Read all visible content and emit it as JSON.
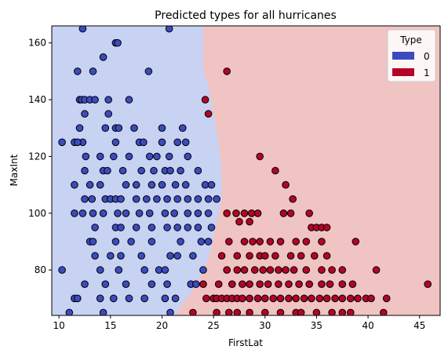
{
  "chart_data": {
    "type": "scatter",
    "title": "Predicted types for all hurricanes",
    "xlabel": "FirstLat",
    "ylabel": "MaxInt",
    "xlim": [
      9.3,
      47.0
    ],
    "ylim": [
      64.0,
      166.0
    ],
    "xticks": [
      10,
      15,
      20,
      25,
      30,
      35,
      40,
      45
    ],
    "yticks": [
      80,
      100,
      120,
      140,
      160
    ],
    "grid": false,
    "legend": {
      "title": "Type",
      "placement": "top-right",
      "entries": [
        "0",
        "1"
      ]
    },
    "colors": {
      "type0": "#3b4cc0",
      "type1": "#b40426",
      "region0": "#c8d2f2",
      "region1": "#f0c4c2"
    },
    "decision_boundary": [
      [
        24.0,
        166
      ],
      [
        24.0,
        150
      ],
      [
        24.5,
        145
      ],
      [
        25.0,
        135
      ],
      [
        25.5,
        125
      ],
      [
        25.8,
        115
      ],
      [
        25.8,
        105
      ],
      [
        25.5,
        100
      ],
      [
        25.2,
        95
      ],
      [
        24.8,
        88
      ],
      [
        24.3,
        82
      ],
      [
        23.8,
        78
      ],
      [
        22.8,
        72
      ],
      [
        21.8,
        67
      ],
      [
        21.3,
        64
      ]
    ],
    "series": [
      {
        "label": "0",
        "points": [
          [
            12.3,
            165
          ],
          [
            20.7,
            165
          ],
          [
            15.5,
            160
          ],
          [
            15.7,
            160
          ],
          [
            14.3,
            155
          ],
          [
            11.8,
            150
          ],
          [
            13.3,
            150
          ],
          [
            18.7,
            150
          ],
          [
            12.0,
            140
          ],
          [
            12.2,
            140
          ],
          [
            12.5,
            140
          ],
          [
            13.0,
            140
          ],
          [
            13.5,
            140
          ],
          [
            14.8,
            140
          ],
          [
            16.8,
            140
          ],
          [
            12.5,
            135
          ],
          [
            14.8,
            135
          ],
          [
            12.0,
            130
          ],
          [
            14.5,
            130
          ],
          [
            15.5,
            130
          ],
          [
            15.8,
            130
          ],
          [
            17.3,
            130
          ],
          [
            20.0,
            130
          ],
          [
            22.0,
            130
          ],
          [
            11.5,
            125
          ],
          [
            12.3,
            125
          ],
          [
            15.5,
            125
          ],
          [
            17.8,
            125
          ],
          [
            18.2,
            125
          ],
          [
            20.0,
            125
          ],
          [
            21.5,
            125
          ],
          [
            10.3,
            125
          ],
          [
            11.8,
            125
          ],
          [
            22.3,
            125
          ],
          [
            18.8,
            120
          ],
          [
            12.6,
            120
          ],
          [
            14.0,
            120
          ],
          [
            15.3,
            120
          ],
          [
            16.8,
            120
          ],
          [
            19.5,
            120
          ],
          [
            20.7,
            120
          ],
          [
            22.5,
            120
          ],
          [
            14.3,
            115
          ],
          [
            12.5,
            115
          ],
          [
            14.7,
            115
          ],
          [
            16.2,
            115
          ],
          [
            18.0,
            115
          ],
          [
            19.2,
            115
          ],
          [
            20.3,
            115
          ],
          [
            20.8,
            115
          ],
          [
            21.8,
            115
          ],
          [
            23.5,
            115
          ],
          [
            11.5,
            110
          ],
          [
            13.0,
            110
          ],
          [
            14.0,
            110
          ],
          [
            16.5,
            110
          ],
          [
            17.5,
            110
          ],
          [
            19.0,
            110
          ],
          [
            20.0,
            110
          ],
          [
            21.3,
            110
          ],
          [
            22.3,
            110
          ],
          [
            24.2,
            110
          ],
          [
            24.8,
            110
          ],
          [
            12.5,
            105
          ],
          [
            13.2,
            105
          ],
          [
            14.5,
            105
          ],
          [
            15.0,
            105
          ],
          [
            15.5,
            105
          ],
          [
            16.0,
            105
          ],
          [
            17.5,
            105
          ],
          [
            18.5,
            105
          ],
          [
            19.5,
            105
          ],
          [
            20.5,
            105
          ],
          [
            21.5,
            105
          ],
          [
            22.5,
            105
          ],
          [
            23.5,
            105
          ],
          [
            24.5,
            105
          ],
          [
            25.3,
            105
          ],
          [
            11.5,
            100
          ],
          [
            12.3,
            100
          ],
          [
            13.3,
            100
          ],
          [
            14.3,
            100
          ],
          [
            15.7,
            100
          ],
          [
            16.5,
            100
          ],
          [
            17.8,
            100
          ],
          [
            18.8,
            100
          ],
          [
            20.3,
            100
          ],
          [
            21.2,
            100
          ],
          [
            22.5,
            100
          ],
          [
            23.5,
            100
          ],
          [
            24.5,
            100
          ],
          [
            13.5,
            95
          ],
          [
            15.5,
            95
          ],
          [
            16.0,
            95
          ],
          [
            17.5,
            95
          ],
          [
            19.0,
            95
          ],
          [
            20.5,
            95
          ],
          [
            21.5,
            95
          ],
          [
            22.5,
            95
          ],
          [
            23.5,
            95
          ],
          [
            24.8,
            95
          ],
          [
            13.0,
            90
          ],
          [
            13.3,
            90
          ],
          [
            15.5,
            90
          ],
          [
            17.0,
            90
          ],
          [
            19.0,
            90
          ],
          [
            21.8,
            90
          ],
          [
            23.8,
            90
          ],
          [
            24.5,
            90
          ],
          [
            13.5,
            85
          ],
          [
            15.0,
            85
          ],
          [
            16.0,
            85
          ],
          [
            18.0,
            85
          ],
          [
            20.8,
            85
          ],
          [
            21.5,
            85
          ],
          [
            23.0,
            85
          ],
          [
            10.3,
            80
          ],
          [
            14.0,
            80
          ],
          [
            15.8,
            80
          ],
          [
            18.3,
            80
          ],
          [
            19.7,
            80
          ],
          [
            20.3,
            80
          ],
          [
            24.0,
            80
          ],
          [
            12.5,
            75
          ],
          [
            14.5,
            75
          ],
          [
            16.5,
            75
          ],
          [
            19.0,
            75
          ],
          [
            20.5,
            75
          ],
          [
            22.8,
            75
          ],
          [
            23.3,
            75
          ],
          [
            11.5,
            70
          ],
          [
            11.8,
            70
          ],
          [
            14.0,
            70
          ],
          [
            15.3,
            70
          ],
          [
            16.8,
            70
          ],
          [
            18.3,
            70
          ],
          [
            20.3,
            70
          ],
          [
            21.3,
            70
          ],
          [
            11.0,
            65
          ],
          [
            14.3,
            65
          ],
          [
            20.8,
            65
          ]
        ]
      },
      {
        "label": "1",
        "points": [
          [
            26.3,
            150
          ],
          [
            24.2,
            140
          ],
          [
            24.5,
            135
          ],
          [
            29.5,
            120
          ],
          [
            31.0,
            115
          ],
          [
            32.0,
            110
          ],
          [
            32.7,
            105
          ],
          [
            26.3,
            100
          ],
          [
            27.2,
            100
          ],
          [
            28.0,
            100
          ],
          [
            28.7,
            100
          ],
          [
            29.3,
            100
          ],
          [
            31.8,
            100
          ],
          [
            32.5,
            100
          ],
          [
            34.3,
            100
          ],
          [
            27.5,
            97
          ],
          [
            28.5,
            97
          ],
          [
            34.5,
            95
          ],
          [
            35.0,
            95
          ],
          [
            35.5,
            95
          ],
          [
            36.0,
            95
          ],
          [
            26.5,
            90
          ],
          [
            28.0,
            90
          ],
          [
            28.8,
            90
          ],
          [
            29.5,
            90
          ],
          [
            30.5,
            90
          ],
          [
            31.5,
            90
          ],
          [
            33.0,
            90
          ],
          [
            34.0,
            90
          ],
          [
            35.5,
            90
          ],
          [
            38.8,
            90
          ],
          [
            25.8,
            85
          ],
          [
            27.3,
            85
          ],
          [
            28.5,
            85
          ],
          [
            29.5,
            85
          ],
          [
            30.0,
            85
          ],
          [
            31.0,
            85
          ],
          [
            32.5,
            85
          ],
          [
            33.5,
            85
          ],
          [
            34.8,
            85
          ],
          [
            36.0,
            85
          ],
          [
            26.3,
            80
          ],
          [
            27.3,
            80
          ],
          [
            28.0,
            80
          ],
          [
            29.0,
            80
          ],
          [
            29.8,
            80
          ],
          [
            30.5,
            80
          ],
          [
            31.3,
            80
          ],
          [
            32.0,
            80
          ],
          [
            32.8,
            80
          ],
          [
            34.0,
            80
          ],
          [
            35.5,
            80
          ],
          [
            36.5,
            80
          ],
          [
            37.5,
            80
          ],
          [
            40.8,
            80
          ],
          [
            25.5,
            75
          ],
          [
            26.8,
            75
          ],
          [
            27.8,
            75
          ],
          [
            28.5,
            75
          ],
          [
            29.5,
            75
          ],
          [
            30.3,
            75
          ],
          [
            31.3,
            75
          ],
          [
            32.3,
            75
          ],
          [
            33.3,
            75
          ],
          [
            34.3,
            75
          ],
          [
            35.5,
            75
          ],
          [
            36.3,
            75
          ],
          [
            37.5,
            75
          ],
          [
            38.5,
            75
          ],
          [
            45.8,
            75
          ],
          [
            24.0,
            75
          ],
          [
            24.3,
            70
          ],
          [
            25.0,
            70
          ],
          [
            25.3,
            70
          ],
          [
            25.8,
            70
          ],
          [
            26.3,
            70
          ],
          [
            26.8,
            70
          ],
          [
            27.3,
            70
          ],
          [
            27.8,
            70
          ],
          [
            28.5,
            70
          ],
          [
            29.3,
            70
          ],
          [
            30.0,
            70
          ],
          [
            30.8,
            70
          ],
          [
            31.5,
            70
          ],
          [
            32.3,
            70
          ],
          [
            33.0,
            70
          ],
          [
            33.8,
            70
          ],
          [
            34.5,
            70
          ],
          [
            35.3,
            70
          ],
          [
            36.0,
            70
          ],
          [
            36.8,
            70
          ],
          [
            37.5,
            70
          ],
          [
            38.3,
            70
          ],
          [
            39.0,
            70
          ],
          [
            39.8,
            70
          ],
          [
            40.3,
            70
          ],
          [
            41.8,
            70
          ],
          [
            23.0,
            65
          ],
          [
            25.3,
            65
          ],
          [
            26.5,
            65
          ],
          [
            27.3,
            65
          ],
          [
            28.5,
            65
          ],
          [
            30.0,
            65
          ],
          [
            31.5,
            65
          ],
          [
            33.0,
            65
          ],
          [
            33.5,
            65
          ],
          [
            35.0,
            65
          ],
          [
            36.5,
            65
          ],
          [
            37.5,
            65
          ],
          [
            38.3,
            65
          ],
          [
            41.5,
            65
          ]
        ]
      }
    ]
  }
}
